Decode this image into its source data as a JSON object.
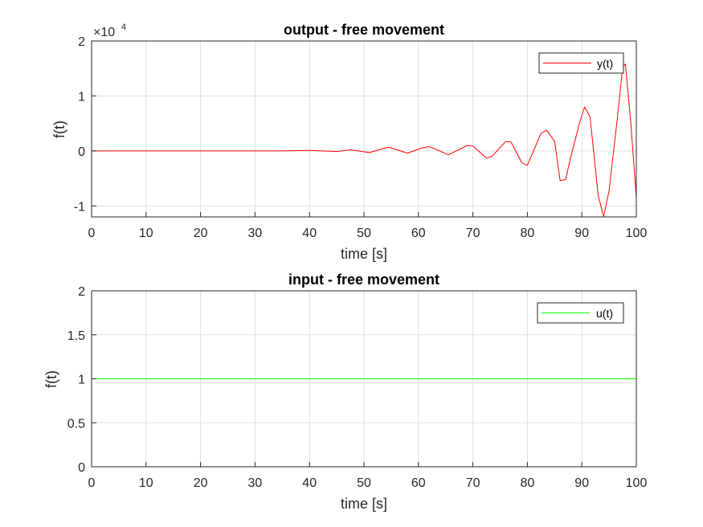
{
  "chart_data": [
    {
      "type": "line",
      "title": "output - free movement",
      "xlabel": "time [s]",
      "ylabel": "f(t)",
      "xlim": [
        0,
        100
      ],
      "ylim": [
        -1.2,
        2
      ],
      "y_scale_label": "×10",
      "y_scale_exponent": "4",
      "x_ticks": [
        "0",
        "10",
        "20",
        "30",
        "40",
        "50",
        "60",
        "70",
        "80",
        "90",
        "100"
      ],
      "y_ticks": [
        "-1",
        "0",
        "1",
        "2"
      ],
      "grid": true,
      "legend_position": "top-right",
      "series": [
        {
          "name": "y(t)",
          "color": "#ff0000",
          "x": [
            0,
            10,
            20,
            30,
            35,
            40,
            45,
            47.5,
            51,
            54.5,
            58,
            60.5,
            62,
            65.5,
            69,
            70,
            72.5,
            73.5,
            76,
            77,
            79,
            80,
            82.5,
            83.5,
            85,
            86,
            87,
            88,
            89.5,
            90.5,
            91.5,
            93,
            94,
            95,
            96.5,
            97.5,
            98,
            99,
            100
          ],
          "y": [
            0,
            0,
            0,
            0,
            0,
            0.01,
            -0.01,
            0.02,
            -0.03,
            0.07,
            -0.04,
            0.05,
            0.08,
            -0.07,
            0.1,
            0.09,
            -0.13,
            -0.1,
            0.17,
            0.16,
            -0.22,
            -0.26,
            0.32,
            0.38,
            0.18,
            -0.54,
            -0.52,
            -0.1,
            0.48,
            0.8,
            0.62,
            -0.8,
            -1.2,
            -0.72,
            0.58,
            1.52,
            1.58,
            0.5,
            -0.85
          ]
        }
      ]
    },
    {
      "type": "line",
      "title": "input - free movement",
      "xlabel": "time [s]",
      "ylabel": "f(t)",
      "xlim": [
        0,
        100
      ],
      "ylim": [
        0,
        2
      ],
      "x_ticks": [
        "0",
        "10",
        "20",
        "30",
        "40",
        "50",
        "60",
        "70",
        "80",
        "90",
        "100"
      ],
      "y_ticks": [
        "0",
        "0.5",
        "1",
        "1.5",
        "2"
      ],
      "grid": true,
      "legend_position": "top-right",
      "series": [
        {
          "name": "u(t)",
          "color": "#00ff00",
          "x": [
            0,
            100
          ],
          "y": [
            1,
            1
          ]
        }
      ]
    }
  ]
}
